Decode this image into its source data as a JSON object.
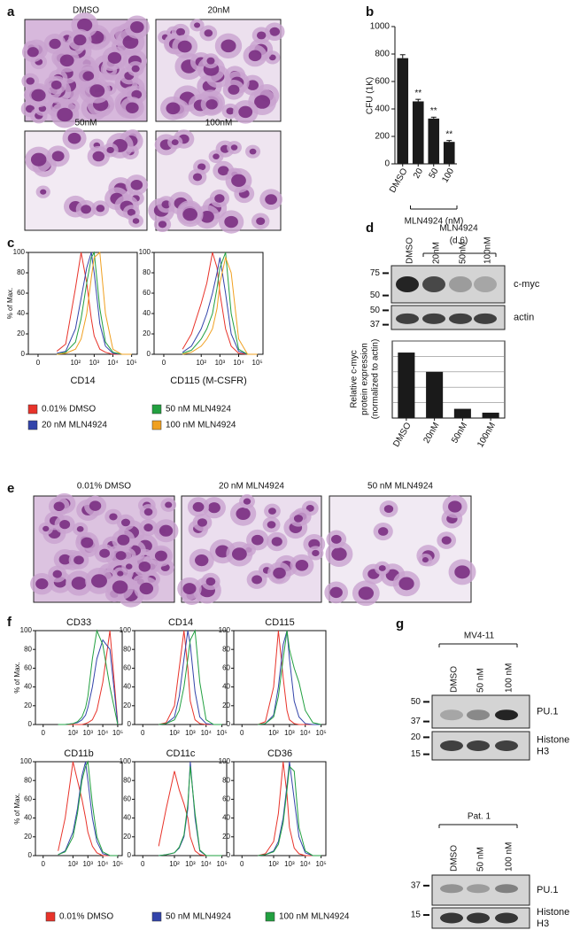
{
  "panel_labels": [
    "a",
    "b",
    "c",
    "d",
    "e",
    "f",
    "g"
  ],
  "panel_a": {
    "titles": [
      "DMSO",
      "20nM",
      "50nM",
      "100nM"
    ]
  },
  "panel_e": {
    "titles": [
      "0.01% DMSO",
      "20 nM MLN4924",
      "50 nM MLN4924"
    ]
  },
  "panel_d_blot": {
    "treatment": "MLN4924",
    "timepoint": "(d.6)",
    "lanes": [
      "DMSO",
      "20nM",
      "50nM",
      "100nM"
    ],
    "blots": [
      {
        "label": [
          "c-myc"
        ],
        "markers": [
          75,
          50
        ]
      },
      {
        "label": [
          "actin"
        ],
        "markers": [
          50,
          37
        ]
      }
    ]
  },
  "panel_g_blots": [
    {
      "title": "MV4-11",
      "lanes": [
        "DMSO",
        "50 nM",
        "100 nM"
      ],
      "blots": [
        {
          "label": [
            "PU.1"
          ],
          "markers": [
            50,
            37
          ]
        },
        {
          "label": [
            "Histone",
            "H3"
          ],
          "markers": [
            20,
            15
          ]
        }
      ]
    },
    {
      "title": "Pat. 1",
      "lanes": [
        "DMSO",
        "50 nM",
        "100 nM"
      ],
      "blots": [
        {
          "label": [
            "PU.1"
          ],
          "markers": [
            37
          ]
        },
        {
          "label": [
            "Histone",
            "H3"
          ],
          "markers": [
            15
          ]
        }
      ]
    }
  ],
  "chart_data": [
    {
      "type": "bar",
      "ylabel": "CFU (1K)",
      "xlabel": "MLN4924 (nM)",
      "categories": [
        "DMSO",
        "20",
        "50",
        "100"
      ],
      "values": [
        770,
        455,
        330,
        160
      ],
      "errors": [
        25,
        15,
        10,
        10
      ],
      "significance": [
        null,
        "**",
        "**",
        "**"
      ],
      "color": "#1a1a1a",
      "ylim": [
        0,
        1000
      ],
      "yticks": [
        0,
        200,
        400,
        600,
        800,
        1000
      ]
    },
    {
      "type": "bar",
      "ylabel": [
        "Relative c-myc",
        "protein expression",
        "(normalized to actin)"
      ],
      "categories": [
        "DMSO",
        "20nM",
        "50nM",
        "100nM"
      ],
      "values": [
        0.85,
        0.6,
        0.12,
        0.07
      ],
      "color": "#1a1a1a",
      "ylim": [
        0,
        1
      ],
      "gridlines": [
        0.2,
        0.4,
        0.6,
        0.8,
        1
      ]
    },
    {
      "type": "line",
      "xlabel": "CD14",
      "ylabel": "% of Max.",
      "xscale": "biexponential",
      "x": [
        10,
        30,
        100,
        200,
        400,
        700,
        1000,
        2000,
        4000,
        10000,
        30000,
        100000
      ],
      "xlim": [
        -3,
        200000
      ],
      "ylim": [
        0,
        100
      ],
      "xticks": [
        {
          "value": 0,
          "label": "0"
        },
        {
          "value": 100,
          "label": "10²"
        },
        {
          "value": 1000,
          "label": "10³"
        },
        {
          "value": 10000,
          "label": "10⁴"
        },
        {
          "value": 100000,
          "label": "10⁵"
        }
      ],
      "yticks": [
        0,
        20,
        40,
        60,
        80,
        100
      ],
      "series": [
        {
          "name": "0.01% DMSO",
          "color": "#e8332a",
          "values": [
            3,
            10,
            65,
            100,
            70,
            35,
            18,
            5,
            2,
            0,
            0,
            0
          ]
        },
        {
          "name": "20 nM MLN4924",
          "color": "#3344aa",
          "values": [
            1,
            3,
            25,
            55,
            85,
            100,
            80,
            30,
            8,
            1,
            0,
            0
          ]
        },
        {
          "name": "50 nM MLN4924",
          "color": "#22a040",
          "values": [
            0,
            2,
            12,
            35,
            70,
            95,
            100,
            45,
            12,
            2,
            0,
            0
          ]
        },
        {
          "name": "100 nM MLN4924",
          "color": "#f0a020",
          "values": [
            0,
            1,
            5,
            15,
            40,
            75,
            95,
            100,
            40,
            5,
            0,
            0
          ]
        }
      ]
    },
    {
      "type": "line",
      "xlabel": "CD115 (M-CSFR)",
      "xscale": "biexponential",
      "x": [
        10,
        30,
        100,
        200,
        400,
        700,
        1000,
        2000,
        4000,
        10000,
        30000,
        100000
      ],
      "xlim": [
        -3,
        200000
      ],
      "ylim": [
        0,
        100
      ],
      "xticks": [
        {
          "value": 0,
          "label": "0"
        },
        {
          "value": 100,
          "label": "10²"
        },
        {
          "value": 1000,
          "label": "10³"
        },
        {
          "value": 10000,
          "label": "10⁴"
        },
        {
          "value": 100000,
          "label": "10⁵"
        }
      ],
      "yticks": [
        0,
        20,
        40,
        60,
        80,
        100
      ],
      "series": [
        {
          "color": "#e8332a",
          "values": [
            5,
            20,
            50,
            70,
            100,
            85,
            60,
            25,
            8,
            1,
            0,
            0
          ]
        },
        {
          "color": "#3344aa",
          "values": [
            2,
            8,
            25,
            40,
            60,
            80,
            95,
            60,
            20,
            3,
            0,
            0
          ]
        },
        {
          "color": "#22a040",
          "values": [
            1,
            4,
            15,
            25,
            40,
            65,
            85,
            100,
            40,
            5,
            0,
            0
          ]
        },
        {
          "color": "#f0a020",
          "values": [
            0,
            2,
            8,
            15,
            25,
            45,
            70,
            95,
            80,
            15,
            0,
            0
          ]
        }
      ]
    },
    {
      "type": "line",
      "title": "CD33",
      "ylabel": "% of Max.",
      "xscale": "biexponential",
      "x": [
        10,
        30,
        100,
        200,
        400,
        700,
        1000,
        2000,
        4000,
        10000,
        30000,
        100000
      ],
      "xlim": [
        -3,
        200000
      ],
      "ylim": [
        0,
        100
      ],
      "xticks": [
        {
          "value": 0,
          "label": "0"
        },
        {
          "value": 100,
          "label": "10²"
        },
        {
          "value": 1000,
          "label": "10³"
        },
        {
          "value": 10000,
          "label": "10⁴"
        },
        {
          "value": 100000,
          "label": "10⁵"
        }
      ],
      "yticks": [
        0,
        20,
        40,
        60,
        80,
        100
      ],
      "series": [
        {
          "name": "0.01% DMSO",
          "color": "#e8332a",
          "values": [
            0,
            0,
            0,
            0,
            0,
            1,
            2,
            5,
            15,
            45,
            100,
            2
          ]
        },
        {
          "name": "50 nM MLN4924",
          "color": "#3344aa",
          "values": [
            0,
            0,
            1,
            2,
            5,
            10,
            18,
            40,
            70,
            90,
            80,
            1
          ]
        },
        {
          "name": "100 nM MLN4924",
          "color": "#22a040",
          "values": [
            0,
            0,
            1,
            3,
            8,
            18,
            30,
            70,
            100,
            85,
            40,
            0
          ]
        }
      ]
    },
    {
      "type": "line",
      "title": "CD14",
      "xscale": "biexponential",
      "x": [
        10,
        30,
        100,
        200,
        400,
        700,
        1000,
        2000,
        4000,
        10000,
        30000,
        100000
      ],
      "xlim": [
        -3,
        200000
      ],
      "ylim": [
        0,
        100
      ],
      "xticks": [
        {
          "value": 0,
          "label": "0"
        },
        {
          "value": 100,
          "label": "10²"
        },
        {
          "value": 1000,
          "label": "10³"
        },
        {
          "value": 10000,
          "label": "10⁴"
        },
        {
          "value": 100000,
          "label": "10⁵"
        }
      ],
      "yticks": [
        0,
        20,
        40,
        60,
        80,
        100
      ],
      "series": [
        {
          "color": "#e8332a",
          "values": [
            0,
            2,
            20,
            60,
            100,
            60,
            25,
            5,
            1,
            0,
            0,
            0
          ]
        },
        {
          "color": "#3344aa",
          "values": [
            0,
            1,
            8,
            30,
            70,
            100,
            85,
            35,
            8,
            1,
            0,
            0
          ]
        },
        {
          "color": "#22a040",
          "values": [
            0,
            1,
            5,
            15,
            40,
            70,
            90,
            100,
            45,
            5,
            0,
            0
          ]
        }
      ]
    },
    {
      "type": "line",
      "title": "CD115",
      "xscale": "biexponential",
      "x": [
        10,
        30,
        100,
        200,
        400,
        700,
        1000,
        2000,
        4000,
        10000,
        30000,
        100000
      ],
      "xlim": [
        -3,
        200000
      ],
      "ylim": [
        0,
        100
      ],
      "xticks": [
        {
          "value": 0,
          "label": "0"
        },
        {
          "value": 100,
          "label": "10²"
        },
        {
          "value": 1000,
          "label": "10³"
        },
        {
          "value": 10000,
          "label": "10⁴"
        },
        {
          "value": 100000,
          "label": "10⁵"
        }
      ],
      "yticks": [
        0,
        20,
        40,
        60,
        80,
        100
      ],
      "series": [
        {
          "color": "#e8332a",
          "values": [
            0,
            3,
            40,
            100,
            50,
            15,
            5,
            1,
            0,
            0,
            0,
            0
          ]
        },
        {
          "color": "#3344aa",
          "values": [
            0,
            1,
            10,
            40,
            85,
            100,
            70,
            25,
            8,
            1,
            0,
            0
          ]
        },
        {
          "color": "#22a040",
          "values": [
            0,
            1,
            8,
            30,
            70,
            100,
            80,
            60,
            45,
            15,
            2,
            0
          ]
        }
      ]
    },
    {
      "type": "line",
      "title": "CD11b",
      "ylabel": "% of Max.",
      "xscale": "biexponential",
      "x": [
        10,
        30,
        100,
        200,
        400,
        700,
        1000,
        2000,
        4000,
        10000,
        30000,
        100000
      ],
      "xlim": [
        -3,
        200000
      ],
      "ylim": [
        0,
        100
      ],
      "xticks": [
        {
          "value": 0,
          "label": "0"
        },
        {
          "value": 100,
          "label": "10²"
        },
        {
          "value": 1000,
          "label": "10³"
        },
        {
          "value": 10000,
          "label": "10⁴"
        },
        {
          "value": 100000,
          "label": "10⁵"
        }
      ],
      "yticks": [
        0,
        20,
        40,
        60,
        80,
        100
      ],
      "series": [
        {
          "color": "#e8332a",
          "values": [
            5,
            40,
            100,
            80,
            60,
            40,
            25,
            10,
            3,
            0,
            0,
            0
          ]
        },
        {
          "color": "#3344aa",
          "values": [
            1,
            5,
            25,
            50,
            85,
            100,
            80,
            40,
            15,
            2,
            0,
            0
          ]
        },
        {
          "color": "#22a040",
          "values": [
            1,
            4,
            20,
            45,
            80,
            95,
            100,
            55,
            20,
            4,
            0,
            0
          ]
        }
      ]
    },
    {
      "type": "line",
      "title": "CD11c",
      "xscale": "biexponential",
      "x": [
        10,
        30,
        100,
        200,
        400,
        700,
        1000,
        2000,
        4000,
        10000,
        30000,
        100000
      ],
      "xlim": [
        -3,
        200000
      ],
      "ylim": [
        0,
        100
      ],
      "xticks": [
        {
          "value": 0,
          "label": "0"
        },
        {
          "value": 100,
          "label": "10²"
        },
        {
          "value": 1000,
          "label": "10³"
        },
        {
          "value": 10000,
          "label": "10⁴"
        },
        {
          "value": 100000,
          "label": "10⁵"
        }
      ],
      "yticks": [
        0,
        20,
        40,
        60,
        80,
        100
      ],
      "series": [
        {
          "color": "#e8332a",
          "values": [
            10,
            50,
            90,
            70,
            55,
            40,
            20,
            5,
            1,
            0,
            0,
            0
          ]
        },
        {
          "color": "#3344aa",
          "values": [
            0,
            1,
            3,
            8,
            20,
            50,
            100,
            40,
            5,
            0,
            0,
            0
          ]
        },
        {
          "color": "#22a040",
          "values": [
            0,
            1,
            3,
            9,
            22,
            55,
            95,
            45,
            6,
            0,
            0,
            0
          ]
        }
      ]
    },
    {
      "type": "line",
      "title": "CD36",
      "xscale": "biexponential",
      "x": [
        10,
        30,
        100,
        200,
        400,
        700,
        1000,
        2000,
        4000,
        10000,
        30000,
        100000
      ],
      "xlim": [
        -3,
        200000
      ],
      "ylim": [
        0,
        100
      ],
      "xticks": [
        {
          "value": 0,
          "label": "0"
        },
        {
          "value": 100,
          "label": "10²"
        },
        {
          "value": 1000,
          "label": "10³"
        },
        {
          "value": 10000,
          "label": "10⁴"
        },
        {
          "value": 100000,
          "label": "10⁵"
        }
      ],
      "yticks": [
        0,
        20,
        40,
        60,
        80,
        100
      ],
      "series": [
        {
          "color": "#e8332a",
          "values": [
            0,
            2,
            15,
            45,
            100,
            65,
            30,
            8,
            2,
            0,
            0,
            0
          ]
        },
        {
          "color": "#3344aa",
          "values": [
            0,
            1,
            5,
            15,
            40,
            75,
            100,
            60,
            20,
            3,
            0,
            0
          ]
        },
        {
          "color": "#22a040",
          "values": [
            0,
            1,
            4,
            12,
            35,
            70,
            95,
            90,
            30,
            5,
            0,
            0
          ]
        }
      ]
    }
  ]
}
